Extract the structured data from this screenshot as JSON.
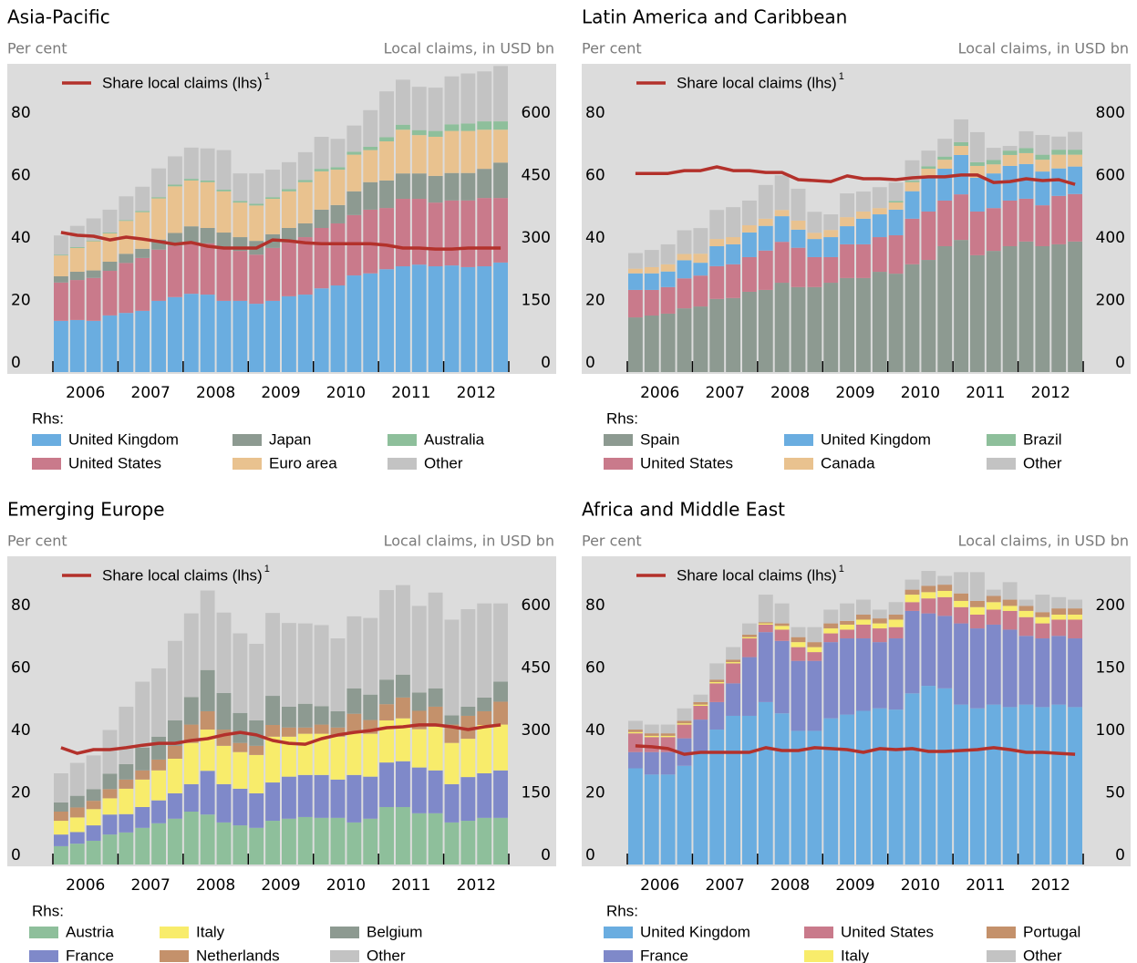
{
  "chart_data": [
    {
      "type": "bar",
      "title": "Asia-Pacific",
      "left_axis_label": "Per cent",
      "right_axis_label": "Local claims, in USD bn",
      "years": [
        "2006",
        "2007",
        "2008",
        "2009",
        "2010",
        "2011",
        "2012"
      ],
      "legend_title": "Rhs:",
      "ylim": [
        0,
        98
      ],
      "yticks": [
        0,
        20,
        40,
        60,
        80
      ],
      "y2lim": [
        0,
        735
      ],
      "y2ticks": [
        0,
        150,
        300,
        450,
        600
      ],
      "series": [
        {
          "name": "United Kingdom",
          "color": "#6aade0",
          "axis": "y2",
          "values": [
            123,
            125,
            123,
            136,
            142,
            147,
            171,
            180,
            188,
            186,
            171,
            171,
            164,
            171,
            182,
            186,
            201,
            208,
            232,
            237,
            247,
            254,
            258,
            254,
            256,
            252,
            254,
            263
          ]
        },
        {
          "name": "United States",
          "color": "#c97a8b",
          "axis": "y2",
          "values": [
            92,
            96,
            103,
            107,
            120,
            127,
            123,
            123,
            123,
            123,
            125,
            120,
            118,
            127,
            129,
            138,
            145,
            149,
            145,
            153,
            147,
            162,
            158,
            153,
            156,
            160,
            164,
            155
          ]
        },
        {
          "name": "Japan",
          "color": "#8d9a91",
          "axis": "y2",
          "values": [
            15,
            20,
            18,
            22,
            22,
            22,
            24,
            31,
            39,
            37,
            39,
            33,
            33,
            33,
            35,
            33,
            44,
            44,
            57,
            66,
            66,
            61,
            61,
            64,
            66,
            66,
            70,
            85
          ]
        },
        {
          "name": "Euro area",
          "color": "#e9c28f",
          "axis": "y2",
          "values": [
            50,
            57,
            70,
            68,
            79,
            88,
            99,
            112,
            110,
            110,
            99,
            83,
            85,
            85,
            88,
            99,
            92,
            85,
            88,
            77,
            94,
            105,
            92,
            94,
            101,
            101,
            94,
            79
          ]
        },
        {
          "name": "Australia",
          "color": "#8ebf9b",
          "axis": "y2",
          "values": [
            2,
            2,
            2,
            2,
            2,
            3,
            3,
            4,
            4,
            4,
            4,
            4,
            4,
            4,
            5,
            5,
            6,
            6,
            7,
            8,
            10,
            12,
            12,
            14,
            16,
            18,
            20,
            20
          ]
        },
        {
          "name": "Other",
          "color": "#c3c3c3",
          "axis": "y2",
          "values": [
            46,
            51,
            53,
            55,
            57,
            58,
            69,
            68,
            75,
            77,
            95,
            66,
            73,
            66,
            65,
            67,
            77,
            68,
            63,
            88,
            110,
            108,
            104,
            104,
            115,
            120,
            120,
            133
          ]
        },
        {
          "name": "Share local claims (lhs)",
          "footnote": "1",
          "type": "line",
          "color": "#b3312b",
          "axis": "y",
          "values": [
            44.7,
            43.8,
            43.5,
            42.3,
            43.2,
            42.6,
            41.8,
            40.9,
            41.5,
            40.3,
            39.7,
            39.7,
            39.7,
            42.3,
            42,
            41.4,
            41.1,
            41.1,
            41.1,
            41.1,
            40.6,
            39.7,
            39.7,
            39.4,
            39.4,
            39.7,
            39.7,
            39.7
          ]
        }
      ]
    },
    {
      "type": "bar",
      "title": "Latin America and Caribbean",
      "left_axis_label": "Per cent",
      "right_axis_label": "Local claims, in USD bn",
      "years": [
        "2006",
        "2007",
        "2008",
        "2009",
        "2010",
        "2011",
        "2012"
      ],
      "legend_title": "Rhs:",
      "ylim": [
        0,
        98
      ],
      "yticks": [
        0,
        20,
        40,
        60,
        80
      ],
      "y2lim": [
        0,
        980
      ],
      "y2ticks": [
        0,
        200,
        400,
        600,
        800
      ],
      "series": [
        {
          "name": "Spain",
          "color": "#8d9a91",
          "axis": "y2",
          "values": [
            175,
            181,
            187,
            204,
            210,
            234,
            237,
            257,
            263,
            286,
            272,
            272,
            286,
            301,
            301,
            321,
            315,
            345,
            359,
            403,
            423,
            374,
            388,
            403,
            418,
            403,
            409,
            418
          ]
        },
        {
          "name": "United States",
          "color": "#c97a8b",
          "axis": "y2",
          "values": [
            88,
            82,
            85,
            96,
            99,
            105,
            108,
            111,
            126,
            131,
            126,
            96,
            82,
            108,
            108,
            111,
            123,
            146,
            155,
            146,
            146,
            140,
            137,
            146,
            137,
            131,
            155,
            152
          ]
        },
        {
          "name": "United Kingdom",
          "color": "#6aade0",
          "axis": "y2",
          "values": [
            53,
            53,
            50,
            58,
            41,
            64,
            64,
            79,
            79,
            82,
            58,
            58,
            64,
            58,
            82,
            73,
            82,
            88,
            108,
            102,
            126,
            108,
            111,
            111,
            111,
            108,
            88,
            88
          ]
        },
        {
          "name": "Canada",
          "color": "#e9c28f",
          "axis": "y2",
          "values": [
            15,
            20,
            23,
            20,
            29,
            23,
            23,
            23,
            23,
            20,
            29,
            20,
            23,
            29,
            23,
            20,
            23,
            29,
            29,
            29,
            29,
            38,
            29,
            35,
            35,
            38,
            44,
            38
          ]
        },
        {
          "name": "Brazil",
          "color": "#8ebf9b",
          "axis": "y2",
          "values": [
            0,
            0,
            0,
            0,
            0,
            0,
            0,
            0,
            0,
            0,
            0,
            0,
            0,
            0,
            0,
            0,
            5,
            5,
            8,
            10,
            12,
            12,
            14,
            14,
            16,
            16,
            16,
            16
          ]
        },
        {
          "name": "Other",
          "color": "#c3c3c3",
          "axis": "y2",
          "values": [
            50,
            55,
            64,
            76,
            82,
            93,
            96,
            79,
            108,
            111,
            102,
            67,
            50,
            76,
            64,
            67,
            59,
            65,
            50,
            57,
            73,
            96,
            39,
            15,
            54,
            63,
            42,
            57
          ]
        },
        {
          "name": "Share local claims (lhs)",
          "footnote": "1",
          "type": "line",
          "color": "#b3312b",
          "axis": "y",
          "values": [
            63.6,
            63.6,
            63.6,
            64.5,
            64.5,
            65.7,
            64.5,
            64.5,
            63.9,
            63.9,
            61.6,
            61.3,
            61,
            62.8,
            61.9,
            61.9,
            61.6,
            62.2,
            62.5,
            62.5,
            63.1,
            63.1,
            60.7,
            61,
            61.9,
            61.3,
            61.6,
            60.1
          ]
        }
      ]
    },
    {
      "type": "bar",
      "title": "Emerging Europe",
      "left_axis_label": "Per cent",
      "right_axis_label": "Local claims, in USD bn",
      "years": [
        "2006",
        "2007",
        "2008",
        "2009",
        "2010",
        "2011",
        "2012"
      ],
      "legend_title": "Rhs:",
      "ylim": [
        0,
        98
      ],
      "yticks": [
        0,
        20,
        40,
        60,
        80
      ],
      "y2lim": [
        0,
        735
      ],
      "y2ticks": [
        0,
        150,
        300,
        450,
        600
      ],
      "series": [
        {
          "name": "Austria",
          "color": "#8ebf9b",
          "axis": "y2",
          "values": [
            44,
            50,
            57,
            72,
            77,
            88,
            99,
            110,
            127,
            120,
            101,
            94,
            88,
            105,
            110,
            114,
            112,
            112,
            101,
            110,
            138,
            138,
            123,
            123,
            101,
            105,
            112,
            112
          ]
        },
        {
          "name": "France",
          "color": "#7f89c9",
          "axis": "y2",
          "values": [
            28,
            28,
            37,
            48,
            44,
            50,
            55,
            61,
            66,
            105,
            92,
            88,
            83,
            92,
            101,
            101,
            103,
            92,
            114,
            101,
            107,
            110,
            110,
            103,
            92,
            105,
            107,
            114
          ]
        },
        {
          "name": "Italy",
          "color": "#f8ec6b",
          "axis": "y2",
          "values": [
            33,
            35,
            39,
            39,
            61,
            66,
            72,
            83,
            99,
            99,
            92,
            88,
            92,
            110,
            96,
            99,
            99,
            103,
            103,
            103,
            101,
            103,
            92,
            105,
            99,
            92,
            116,
            110
          ]
        },
        {
          "name": "Netherlands",
          "color": "#c4916b",
          "axis": "y2",
          "values": [
            22,
            24,
            20,
            22,
            22,
            22,
            26,
            31,
            44,
            44,
            39,
            22,
            22,
            28,
            22,
            15,
            22,
            22,
            44,
            33,
            39,
            50,
            44,
            48,
            44,
            55,
            33,
            55
          ]
        },
        {
          "name": "Belgium",
          "color": "#8d9a91",
          "axis": "y2",
          "values": [
            22,
            28,
            28,
            37,
            37,
            55,
            55,
            61,
            66,
            99,
            88,
            72,
            61,
            70,
            50,
            57,
            44,
            39,
            61,
            61,
            59,
            55,
            44,
            44,
            22,
            22,
            33,
            48
          ]
        },
        {
          "name": "Other",
          "color": "#c3c3c3",
          "axis": "y2",
          "values": [
            70,
            79,
            81,
            105,
            138,
            158,
            164,
            191,
            201,
            191,
            193,
            191,
            184,
            199,
            201,
            193,
            195,
            175,
            173,
            184,
            215,
            215,
            208,
            230,
            230,
            234,
            226,
            188
          ]
        },
        {
          "name": "Share local claims (lhs)",
          "footnote": "1",
          "type": "line",
          "color": "#b3312b",
          "axis": "y",
          "values": [
            37.4,
            35.6,
            36.8,
            36.8,
            37.4,
            38.2,
            38.8,
            38.8,
            39.7,
            40.3,
            41.5,
            42.3,
            41.5,
            39.7,
            38.8,
            38.5,
            40.3,
            41.5,
            42.3,
            42.9,
            43.8,
            44.1,
            44.7,
            44.7,
            44.1,
            43.2,
            44.1,
            44.7
          ]
        }
      ]
    },
    {
      "type": "bar",
      "title": "Africa and Middle East",
      "left_axis_label": "Per cent",
      "right_axis_label": "Local claims, in USD bn",
      "years": [
        "2006",
        "2007",
        "2008",
        "2009",
        "2010",
        "2011",
        "2012"
      ],
      "legend_title": "Rhs:",
      "ylim": [
        0,
        98
      ],
      "yticks": [
        0,
        20,
        40,
        60,
        80
      ],
      "y2lim": [
        0,
        245
      ],
      "y2ticks": [
        0,
        50,
        100,
        150,
        200
      ],
      "series": [
        {
          "name": "United Kingdom",
          "color": "#6aade0",
          "axis": "y2",
          "values": [
            77,
            72,
            72,
            79,
            90,
            108,
            119,
            119,
            130,
            121,
            107,
            107,
            117,
            120,
            123,
            125,
            124,
            137,
            143,
            141,
            128,
            125,
            128,
            126,
            128,
            126,
            128,
            126
          ]
        },
        {
          "name": "France",
          "color": "#7f89c9",
          "axis": "y2",
          "values": [
            13,
            18,
            18,
            22,
            26,
            22,
            26,
            47,
            56,
            58,
            56,
            56,
            61,
            61,
            58,
            53,
            57,
            66,
            58,
            58,
            65,
            64,
            64,
            62,
            55,
            55,
            55,
            55
          ]
        },
        {
          "name": "United States",
          "color": "#c97a8b",
          "axis": "y2",
          "values": [
            15,
            12,
            12,
            11,
            11,
            15,
            16,
            15,
            6,
            9,
            11,
            7,
            7,
            7,
            11,
            11,
            9,
            7,
            12,
            15,
            13,
            11,
            12,
            15,
            15,
            12,
            13,
            15
          ]
        },
        {
          "name": "Italy",
          "color": "#f8ec6b",
          "axis": "y2",
          "values": [
            1,
            1,
            1,
            1,
            1,
            1,
            1,
            1,
            1,
            3,
            4,
            4,
            4,
            4,
            4,
            4,
            6,
            6,
            5,
            5,
            5,
            6,
            6,
            4,
            5,
            5,
            4,
            4
          ]
        },
        {
          "name": "Portugal",
          "color": "#c4916b",
          "axis": "y2",
          "values": [
            2,
            2,
            2,
            2,
            2,
            2,
            2,
            2,
            1,
            2,
            4,
            4,
            4,
            3,
            4,
            4,
            4,
            4,
            5,
            5,
            6,
            5,
            5,
            5,
            4,
            4,
            5,
            5
          ]
        },
        {
          "name": "Other",
          "color": "#c3c3c3",
          "axis": "y2",
          "values": [
            7,
            7,
            7,
            10,
            6,
            13,
            10,
            9,
            22,
            16,
            8,
            12,
            11,
            14,
            12,
            7,
            10,
            8,
            12,
            7,
            17,
            23,
            5,
            14,
            5,
            14,
            9,
            7
          ]
        },
        {
          "name": "Share local claims (lhs)",
          "footnote": "1",
          "type": "line",
          "color": "#b3312b",
          "axis": "y",
          "values": [
            38,
            37.7,
            37.1,
            35.3,
            35.9,
            35.9,
            35.9,
            35.9,
            37.4,
            36.5,
            36.5,
            37.4,
            37.1,
            36.8,
            35.9,
            37.1,
            36.8,
            37.1,
            36.2,
            36.2,
            36.5,
            36.8,
            37.4,
            36.8,
            35.9,
            35.9,
            35.6,
            35.3
          ]
        }
      ]
    }
  ]
}
